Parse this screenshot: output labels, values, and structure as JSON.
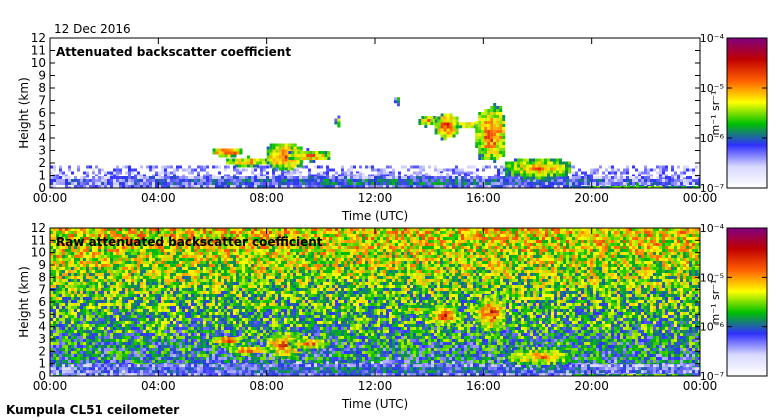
{
  "date_label": "12 Dec 2016",
  "footer": "Kumpula CL51 ceilometer",
  "colors": {
    "scale": [
      "#ffffff",
      "#d8d8ff",
      "#3030ff",
      "#00c000",
      "#ffff00",
      "#ff6000",
      "#c00000",
      "#800080"
    ]
  },
  "chart_data": [
    {
      "type": "heatmap",
      "title": "Attenuated backscatter coefficient",
      "xlabel": "Time (UTC)",
      "ylabel": "Height (km)",
      "x_ticks": [
        "00:00",
        "04:00",
        "08:00",
        "12:00",
        "16:00",
        "20:00",
        "00:00"
      ],
      "x_range_hours": [
        0,
        24
      ],
      "y_ticks": [
        0,
        1,
        2,
        3,
        4,
        5,
        6,
        7,
        8,
        9,
        10,
        11,
        12
      ],
      "ylim": [
        0,
        12
      ],
      "colorbar": {
        "label": "m⁻¹ sr⁻¹",
        "ticks": [
          "10⁻⁷",
          "10⁻⁶",
          "10⁻⁵",
          "10⁻⁴"
        ],
        "log_range": [
          -7,
          -4
        ]
      },
      "features": [
        {
          "t0": 0.0,
          "t1": 24.0,
          "h0": 0.0,
          "h1": 1.2,
          "level": 0.35
        },
        {
          "t0": 6.0,
          "t1": 7.0,
          "h0": 2.6,
          "h1": 3.4,
          "level": 0.85
        },
        {
          "t0": 6.5,
          "t1": 8.0,
          "h0": 1.8,
          "h1": 2.6,
          "level": 0.75
        },
        {
          "t0": 8.0,
          "t1": 9.3,
          "h0": 1.5,
          "h1": 3.8,
          "level": 0.8
        },
        {
          "t0": 8.8,
          "t1": 10.3,
          "h0": 2.2,
          "h1": 3.2,
          "level": 0.75
        },
        {
          "t0": 10.5,
          "t1": 10.7,
          "h0": 5.0,
          "h1": 5.8,
          "level": 0.6
        },
        {
          "t0": 12.7,
          "t1": 12.9,
          "h0": 6.7,
          "h1": 7.5,
          "level": 0.5
        },
        {
          "t0": 13.6,
          "t1": 14.2,
          "h0": 5.0,
          "h1": 6.0,
          "level": 0.7
        },
        {
          "t0": 14.2,
          "t1": 15.0,
          "h0": 4.0,
          "h1": 6.2,
          "level": 0.8
        },
        {
          "t0": 15.0,
          "t1": 15.7,
          "h0": 4.8,
          "h1": 5.5,
          "level": 0.7
        },
        {
          "t0": 15.7,
          "t1": 16.8,
          "h0": 2.0,
          "h1": 6.8,
          "level": 0.8
        },
        {
          "t0": 16.8,
          "t1": 19.2,
          "h0": 0.8,
          "h1": 2.6,
          "level": 0.7
        },
        {
          "t0": 19.2,
          "t1": 24.0,
          "h0": 0.1,
          "h1": 0.4,
          "level": 0.65
        }
      ]
    },
    {
      "type": "heatmap",
      "title": "Raw attenuated backscatter coefficient",
      "xlabel": "Time (UTC)",
      "ylabel": "Height (km)",
      "x_ticks": [
        "00:00",
        "04:00",
        "08:00",
        "12:00",
        "16:00",
        "20:00",
        "00:00"
      ],
      "x_range_hours": [
        0,
        24
      ],
      "y_ticks": [
        0,
        1,
        2,
        3,
        4,
        5,
        6,
        7,
        8,
        9,
        10,
        11,
        12
      ],
      "ylim": [
        0,
        12
      ],
      "colorbar": {
        "label": "m⁻¹ sr⁻¹",
        "ticks": [
          "10⁻⁷",
          "10⁻⁶",
          "10⁻⁵",
          "10⁻⁴"
        ],
        "log_range": [
          -7,
          -4
        ]
      },
      "features": [
        {
          "t0": 0.0,
          "t1": 24.0,
          "h0": 0.0,
          "h1": 1.2,
          "level": 0.35
        },
        {
          "t0": 6.0,
          "t1": 7.0,
          "h0": 2.6,
          "h1": 3.4,
          "level": 0.85
        },
        {
          "t0": 6.5,
          "t1": 8.0,
          "h0": 1.8,
          "h1": 2.6,
          "level": 0.75
        },
        {
          "t0": 8.0,
          "t1": 9.3,
          "h0": 1.5,
          "h1": 3.8,
          "level": 0.8
        },
        {
          "t0": 8.8,
          "t1": 10.3,
          "h0": 2.2,
          "h1": 3.2,
          "level": 0.75
        },
        {
          "t0": 11.0,
          "t1": 12.0,
          "h0": 4.3,
          "h1": 5.2,
          "level": 0.6
        },
        {
          "t0": 13.0,
          "t1": 14.0,
          "h0": 5.0,
          "h1": 6.0,
          "level": 0.65
        },
        {
          "t0": 14.0,
          "t1": 15.0,
          "h0": 4.0,
          "h1": 6.0,
          "level": 0.8
        },
        {
          "t0": 15.7,
          "t1": 16.8,
          "h0": 3.5,
          "h1": 6.8,
          "level": 0.8
        },
        {
          "t0": 16.8,
          "t1": 19.2,
          "h0": 0.8,
          "h1": 2.6,
          "level": 0.7
        },
        {
          "t0": 19.2,
          "t1": 24.0,
          "h0": 0.1,
          "h1": 0.4,
          "level": 0.65
        }
      ]
    }
  ]
}
